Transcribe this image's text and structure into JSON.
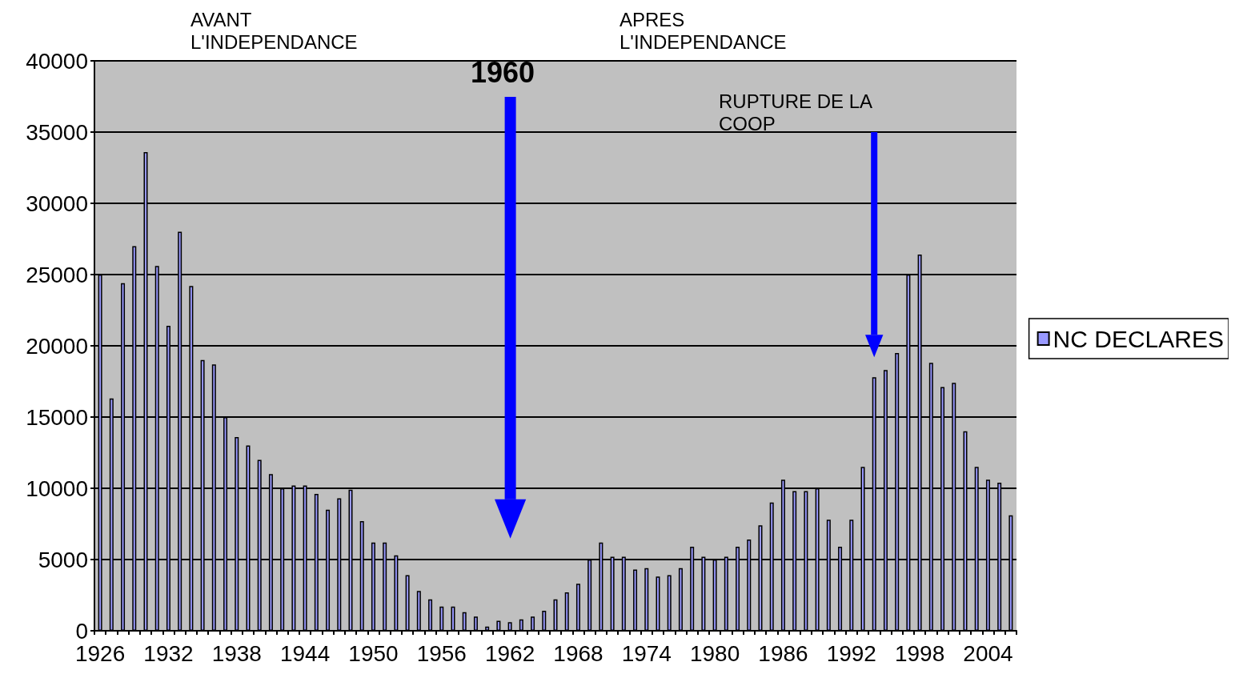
{
  "chart_data": {
    "type": "bar",
    "categories": [
      "1926",
      null,
      null,
      null,
      null,
      null,
      "1932",
      null,
      null,
      null,
      null,
      null,
      "1938",
      null,
      null,
      null,
      null,
      null,
      "1944",
      null,
      null,
      null,
      null,
      null,
      "1950",
      null,
      null,
      null,
      null,
      null,
      "1956",
      null,
      null,
      null,
      null,
      null,
      "1962",
      null,
      null,
      null,
      null,
      null,
      "1968",
      null,
      null,
      null,
      null,
      null,
      "1974",
      null,
      null,
      null,
      null,
      null,
      "1980",
      null,
      null,
      null,
      null,
      null,
      "1986",
      null,
      null,
      null,
      null,
      null,
      "1992",
      null,
      null,
      null,
      null,
      null,
      "1998",
      null,
      null,
      null,
      null,
      null,
      "2004",
      null,
      null
    ],
    "series": [
      {
        "name": "NC DECLARES",
        "color": "#9999ff",
        "values": [
          25000,
          16300,
          24400,
          27000,
          33600,
          25600,
          21400,
          28000,
          24200,
          19000,
          18700,
          15000,
          13600,
          13000,
          12000,
          11000,
          10000,
          10200,
          10200,
          9600,
          8500,
          9300,
          9900,
          7700,
          6200,
          6200,
          5300,
          3900,
          2800,
          2200,
          1700,
          1700,
          1300,
          1000,
          300,
          700,
          600,
          800,
          1000,
          1400,
          2200,
          2700,
          3300,
          5000,
          6200,
          5200,
          5200,
          4300,
          4400,
          3800,
          3900,
          4400,
          5900,
          5200,
          5000,
          5200,
          5900,
          6400,
          7400,
          9000,
          10600,
          9800,
          9800,
          10000,
          7800,
          5900,
          7800,
          11500,
          17800,
          18300,
          19500,
          25000,
          26400,
          18800,
          17100,
          17400,
          14000,
          11500,
          10600,
          10400,
          8100
        ]
      }
    ],
    "ylim": [
      0,
      40000
    ],
    "yticks": [
      0,
      5000,
      10000,
      15000,
      20000,
      25000,
      30000,
      35000,
      40000
    ],
    "grid": "y",
    "legend": "right",
    "annotations": [
      "AVANT L'INDEPENDANCE",
      "APRES L'INDEPENDANCE",
      "1960",
      "RUPTURE DE LA COOP"
    ]
  }
}
